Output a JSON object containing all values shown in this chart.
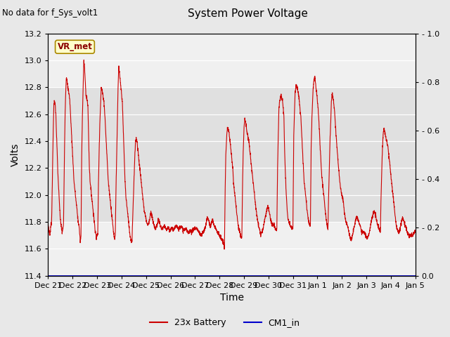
{
  "title": "System Power Voltage",
  "no_data_label": "No data for f_Sys_volt1",
  "ylabel_left": "Volts",
  "xlabel": "Time",
  "ylim_left": [
    11.4,
    13.2
  ],
  "ylim_right": [
    0.0,
    1.0
  ],
  "yticks_left": [
    11.4,
    11.6,
    11.8,
    12.0,
    12.2,
    12.4,
    12.6,
    12.8,
    13.0,
    13.2
  ],
  "yticks_right": [
    0.0,
    0.2,
    0.4,
    0.6,
    0.8,
    1.0
  ],
  "xtick_labels": [
    "Dec 21",
    "Dec 22",
    "Dec 23",
    "Dec 24",
    "Dec 25",
    "Dec 26",
    "Dec 27",
    "Dec 28",
    "Dec 29",
    "Dec 30",
    "Dec 31",
    "Jan 1",
    "Jan 2",
    "Jan 3",
    "Jan 4",
    "Jan 5"
  ],
  "fig_bg_color": "#e8e8e8",
  "plot_bg_color": "#f0f0f0",
  "band_color": "#e0e0e0",
  "line_color_battery": "#cc0000",
  "line_color_cm1": "#0000cc",
  "vr_met_label": "VR_met",
  "vr_met_bg": "#ffffcc",
  "vr_met_border": "#aa8800",
  "legend_battery": "23x Battery",
  "legend_cm1": "CM1_in",
  "num_days": 15,
  "voltage_data": [
    11.78,
    11.75,
    11.7,
    11.72,
    11.78,
    11.8,
    12.1,
    12.4,
    12.65,
    12.7,
    12.68,
    12.6,
    12.45,
    12.3,
    12.15,
    12.05,
    11.95,
    11.85,
    11.8,
    11.75,
    11.72,
    11.75,
    11.78,
    12.2,
    12.55,
    12.75,
    12.88,
    12.85,
    12.8,
    12.78,
    12.75,
    12.7,
    12.6,
    12.5,
    12.4,
    12.3,
    12.2,
    12.1,
    12.05,
    12.0,
    11.95,
    11.9,
    11.85,
    11.8,
    11.78,
    11.72,
    11.65,
    11.7,
    12.3,
    12.6,
    12.8,
    13.0,
    12.95,
    12.85,
    12.75,
    12.72,
    12.7,
    12.65,
    12.4,
    12.2,
    12.1,
    12.05,
    12.0,
    11.95,
    11.9,
    11.85,
    11.8,
    11.75,
    11.72,
    11.68,
    11.7,
    11.72,
    12.1,
    12.35,
    12.55,
    12.7,
    12.8,
    12.78,
    12.75,
    12.72,
    12.68,
    12.6,
    12.5,
    12.4,
    12.3,
    12.2,
    12.1,
    12.05,
    12.0,
    11.95,
    11.9,
    11.85,
    11.8,
    11.75,
    11.7,
    11.68,
    11.7,
    12.05,
    12.3,
    12.55,
    12.8,
    12.95,
    12.9,
    12.85,
    12.8,
    12.75,
    12.7,
    12.55,
    12.4,
    12.25,
    12.1,
    12.0,
    11.95,
    11.9,
    11.85,
    11.8,
    11.75,
    11.7,
    11.68,
    11.65,
    11.68,
    11.85,
    12.0,
    12.15,
    12.3,
    12.4,
    12.42,
    12.4,
    12.35,
    12.3,
    12.25,
    12.2,
    12.15,
    12.1,
    12.05,
    12.0,
    11.95,
    11.9,
    11.87,
    11.85,
    11.82,
    11.8,
    11.78,
    11.78,
    11.8,
    11.82,
    11.85,
    11.87,
    11.85,
    11.83,
    11.8,
    11.78,
    11.77,
    11.75,
    11.75,
    11.77,
    11.78,
    11.8,
    11.82,
    11.8,
    11.78,
    11.76,
    11.75,
    11.75,
    11.75,
    11.76,
    11.77,
    11.76,
    11.75,
    11.74,
    11.75,
    11.76,
    11.75,
    11.74,
    11.73,
    11.74,
    11.75,
    11.76,
    11.75,
    11.74,
    11.74,
    11.75,
    11.77,
    11.78,
    11.77,
    11.76,
    11.75,
    11.75,
    11.76,
    11.77,
    11.77,
    11.76,
    11.75,
    11.74,
    11.74,
    11.74,
    11.75,
    11.75,
    11.74,
    11.73,
    11.72,
    11.72,
    11.73,
    11.74,
    11.74,
    11.73,
    11.73,
    11.74,
    11.75,
    11.75,
    11.75,
    11.75,
    11.75,
    11.75,
    11.74,
    11.73,
    11.72,
    11.71,
    11.7,
    11.7,
    11.71,
    11.72,
    11.73,
    11.74,
    11.75,
    11.77,
    11.8,
    11.82,
    11.83,
    11.82,
    11.8,
    11.78,
    11.77,
    11.78,
    11.8,
    11.82,
    11.8,
    11.78,
    11.77,
    11.76,
    11.75,
    11.74,
    11.73,
    11.72,
    11.71,
    11.7,
    11.69,
    11.68,
    11.67,
    11.66,
    11.65,
    11.64,
    11.6,
    12.0,
    12.3,
    12.4,
    12.48,
    12.5,
    12.48,
    12.45,
    12.4,
    12.35,
    12.3,
    12.25,
    12.2,
    12.1,
    12.05,
    12.0,
    11.95,
    11.9,
    11.85,
    11.8,
    11.77,
    11.75,
    11.72,
    11.7,
    11.68,
    11.7,
    12.1,
    12.35,
    12.5,
    12.55,
    12.55,
    12.52,
    12.48,
    12.45,
    12.42,
    12.4,
    12.35,
    12.3,
    12.25,
    12.2,
    12.15,
    12.1,
    12.05,
    12.0,
    11.95,
    11.9,
    11.87,
    11.83,
    11.8,
    11.77,
    11.75,
    11.73,
    11.71,
    11.72,
    11.73,
    11.75,
    11.77,
    11.8,
    11.83,
    11.85,
    11.87,
    11.9,
    11.92,
    11.9,
    11.88,
    11.85,
    11.82,
    11.8,
    11.78,
    11.78,
    11.78,
    11.77,
    11.76,
    11.75,
    11.74,
    11.74,
    12.2,
    12.45,
    12.65,
    12.7,
    12.72,
    12.75,
    12.73,
    12.7,
    12.65,
    12.6,
    12.35,
    12.2,
    12.05,
    11.95,
    11.87,
    11.82,
    11.8,
    11.79,
    11.78,
    11.77,
    11.76,
    11.75,
    11.75,
    12.4,
    12.6,
    12.75,
    12.8,
    12.82,
    12.8,
    12.78,
    12.75,
    12.7,
    12.65,
    12.6,
    12.5,
    12.4,
    12.3,
    12.2,
    12.1,
    12.05,
    12.0,
    11.95,
    11.9,
    11.85,
    11.82,
    11.8,
    11.78,
    11.78,
    12.35,
    12.55,
    12.7,
    12.8,
    12.85,
    12.88,
    12.85,
    12.8,
    12.75,
    12.7,
    12.65,
    12.55,
    12.45,
    12.35,
    12.25,
    12.15,
    12.1,
    12.05,
    12.0,
    11.95,
    11.9,
    11.85,
    11.8,
    11.77,
    11.75,
    12.0,
    12.2,
    12.4,
    12.55,
    12.7,
    12.75,
    12.73,
    12.7,
    12.65,
    12.58,
    12.5,
    12.42,
    12.35,
    12.28,
    12.22,
    12.15,
    12.1,
    12.05,
    12.02,
    12.0,
    11.98,
    11.95,
    11.9,
    11.85,
    11.82,
    11.8,
    11.78,
    11.77,
    11.75,
    11.72,
    11.7,
    11.68,
    11.67,
    11.68,
    11.7,
    11.72,
    11.75,
    11.77,
    11.8,
    11.82,
    11.83,
    11.83,
    11.82,
    11.8,
    11.78,
    11.77,
    11.75,
    11.73,
    11.72,
    11.72,
    11.73,
    11.72,
    11.71,
    11.7,
    11.69,
    11.68,
    11.69,
    11.7,
    11.72,
    11.75,
    11.77,
    11.8,
    11.83,
    11.85,
    11.87,
    11.88,
    11.87,
    11.85,
    11.83,
    11.8,
    11.78,
    11.77,
    11.75,
    11.74,
    11.73,
    12.0,
    12.2,
    12.35,
    12.45,
    12.5,
    12.48,
    12.45,
    12.42,
    12.4,
    12.38,
    12.35,
    12.3,
    12.25,
    12.2,
    12.15,
    12.1,
    12.05,
    12.0,
    11.95,
    11.9,
    11.85,
    11.8,
    11.77,
    11.75,
    11.73,
    11.72,
    11.73,
    11.75,
    11.77,
    11.8,
    11.82,
    11.83,
    11.82,
    11.8,
    11.78,
    11.77,
    11.75,
    11.73,
    11.72,
    11.71,
    11.7,
    11.7,
    11.7,
    11.7,
    11.7,
    11.7,
    11.71,
    11.72,
    11.73,
    11.73
  ]
}
